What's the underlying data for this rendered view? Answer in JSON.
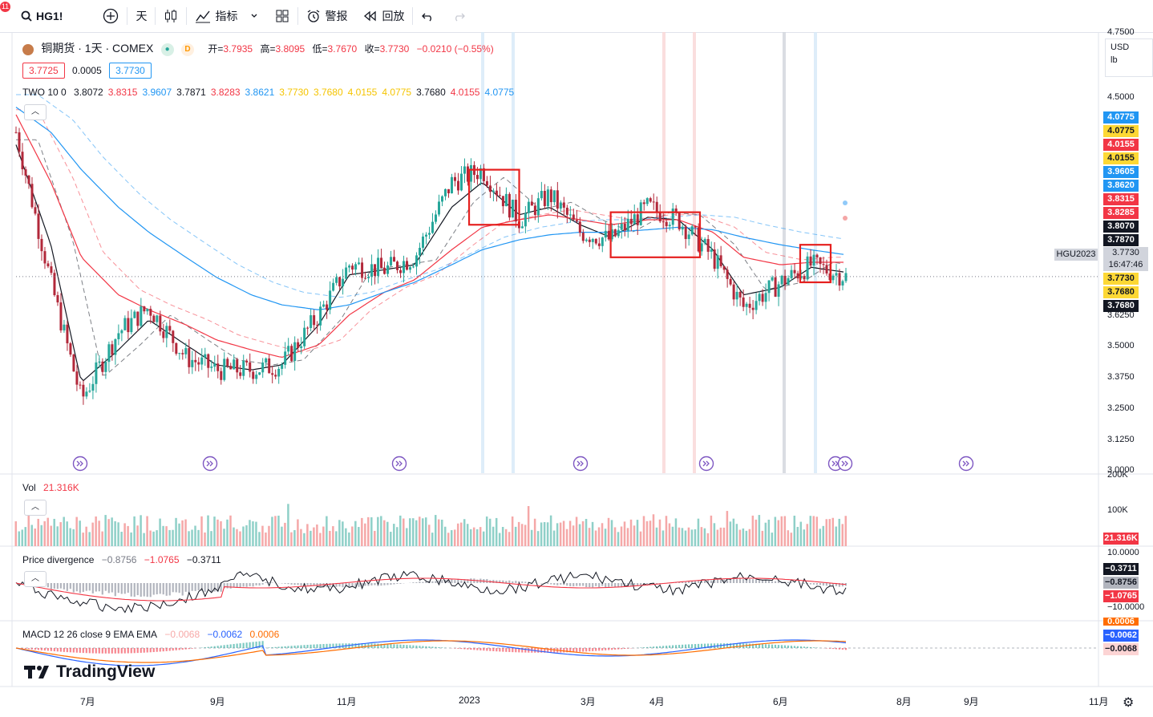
{
  "toolbar": {
    "badge": "11",
    "symbol": "HG1!",
    "interval": "天",
    "indicators": "指标",
    "alert": "警报",
    "replay": "回放"
  },
  "header": {
    "title": "铜期货 · 1天 · COMEX",
    "open_label": "开=",
    "open": "3.7935",
    "high_label": "高=",
    "high": "3.8095",
    "low_label": "低=",
    "low": "3.7670",
    "close_label": "收=",
    "close": "3.7730",
    "change": "−0.0210 (−0.55%)",
    "bid": "3.7725",
    "spread": "0.0005",
    "ask": "3.7730",
    "status_letter": "D"
  },
  "two_legend": {
    "name": "TWO 10 0",
    "values": [
      "3.8072",
      "3.8315",
      "3.9607",
      "3.7871",
      "3.8283",
      "3.8621",
      "3.7730",
      "3.7680",
      "4.0155",
      "4.0775",
      "3.7680",
      "4.0155",
      "4.0775"
    ],
    "colors": [
      "#131722",
      "#f23645",
      "#2196f3",
      "#131722",
      "#f23645",
      "#2196f3",
      "#f5c400",
      "#f5c400",
      "#f5c400",
      "#f5c400",
      "#131722",
      "#f23645",
      "#2196f3"
    ]
  },
  "currency": {
    "unit": "USD",
    "measure": "lb"
  },
  "price_axis": {
    "ticks": [
      "4.7500",
      "4.5000",
      "3.6250",
      "3.5000",
      "3.3750",
      "3.2500",
      "3.1250",
      "3.0000"
    ],
    "labels": [
      {
        "text": "4.0775",
        "bg": "#2196f3",
        "fg": "#ffffff"
      },
      {
        "text": "4.0775",
        "bg": "#fdd835",
        "fg": "#131722"
      },
      {
        "text": "4.0155",
        "bg": "#f23645",
        "fg": "#ffffff"
      },
      {
        "text": "4.0155",
        "bg": "#fdd835",
        "fg": "#131722"
      },
      {
        "text": "3.9605",
        "bg": "#2196f3",
        "fg": "#ffffff"
      },
      {
        "text": "3.8620",
        "bg": "#2196f3",
        "fg": "#ffffff"
      },
      {
        "text": "3.8315",
        "bg": "#f23645",
        "fg": "#ffffff"
      },
      {
        "text": "3.8285",
        "bg": "#f23645",
        "fg": "#ffffff"
      },
      {
        "text": "3.8070",
        "bg": "#131722",
        "fg": "#ffffff"
      },
      {
        "text": "3.7870",
        "bg": "#131722",
        "fg": "#ffffff"
      },
      {
        "text": "3.7730",
        "bg": "#fdd835",
        "fg": "#131722"
      },
      {
        "text": "3.7680",
        "bg": "#fdd835",
        "fg": "#131722"
      },
      {
        "text": "3.7680",
        "bg": "#131722",
        "fg": "#ffffff"
      }
    ],
    "current_label": "3.7730",
    "countdown": "16:47:46",
    "contract": "HGU2023"
  },
  "volume": {
    "name": "Vol",
    "value": "21.316K",
    "ticks": [
      "200K",
      "100K"
    ],
    "label": "21.316K"
  },
  "divergence": {
    "name": "Price divergence",
    "v1": "−0.8756",
    "v2": "−1.0765",
    "v3": "−0.3711",
    "ticks": [
      "10.0000",
      "−10.0000"
    ],
    "labels": [
      "−0.3711",
      "−0.8756",
      "−1.0765"
    ]
  },
  "macd": {
    "name": "MACD 12 26 close 9 EMA EMA",
    "v1": "−0.0068",
    "v2": "−0.0062",
    "v3": "0.0006",
    "labels": [
      "0.0006",
      "−0.0062",
      "−0.0068"
    ]
  },
  "x_axis": [
    "7月",
    "9月",
    "11月",
    "2023",
    "3月",
    "4月",
    "6月",
    "8月",
    "9月",
    "11月"
  ],
  "branding": "TradingView",
  "colors": {
    "up": "#26a69a",
    "down": "#b2283a",
    "ma_red": "#f23645",
    "ma_blue": "#2196f3",
    "ma_black": "#131722",
    "box": "#e5201f"
  },
  "chart_data": {
    "type": "candlestick",
    "title": "铜期货 · 1天 · COMEX",
    "x": [
      "2022-06-15",
      "2022-07-01",
      "2022-07-15",
      "2022-08-01",
      "2022-08-15",
      "2022-09-01",
      "2022-09-15",
      "2022-10-01",
      "2022-10-15",
      "2022-11-01",
      "2022-11-15",
      "2022-12-01",
      "2022-12-15",
      "2023-01-01",
      "2023-01-15",
      "2023-02-01",
      "2023-02-15",
      "2023-03-01",
      "2023-03-15",
      "2023-04-01",
      "2023-04-15",
      "2023-05-01",
      "2023-05-15",
      "2023-06-01",
      "2023-06-15",
      "2023-07-01"
    ],
    "close": [
      4.35,
      3.75,
      3.28,
      3.55,
      3.65,
      3.45,
      3.4,
      3.4,
      3.42,
      3.62,
      3.82,
      3.8,
      3.85,
      4.15,
      4.2,
      4.0,
      4.1,
      3.95,
      3.92,
      4.05,
      4.0,
      3.85,
      3.65,
      3.75,
      3.82,
      3.773
    ],
    "ylim": [
      3.0,
      4.75
    ],
    "ylabel": "USD / lb",
    "series": [
      {
        "name": "TWO 10 0 fast",
        "values": [
          4.3,
          3.9,
          3.35,
          3.48,
          3.6,
          3.5,
          3.42,
          3.4,
          3.42,
          3.58,
          3.78,
          3.8,
          3.82,
          4.05,
          4.15,
          4.02,
          4.05,
          3.98,
          3.93,
          4.01,
          4.0,
          3.88,
          3.7,
          3.73,
          3.81,
          3.79
        ]
      },
      {
        "name": "TWO 10 0 mid",
        "values": [
          4.42,
          4.15,
          3.85,
          3.7,
          3.64,
          3.58,
          3.52,
          3.48,
          3.45,
          3.5,
          3.62,
          3.71,
          3.76,
          3.88,
          3.97,
          4.0,
          4.02,
          4.0,
          3.98,
          4.0,
          4.0,
          3.95,
          3.85,
          3.82,
          3.83,
          3.83
        ]
      },
      {
        "name": "TWO 10 0 slow",
        "values": [
          4.45,
          4.35,
          4.2,
          4.05,
          3.95,
          3.85,
          3.77,
          3.7,
          3.66,
          3.64,
          3.66,
          3.71,
          3.75,
          3.82,
          3.88,
          3.92,
          3.94,
          3.95,
          3.95,
          3.96,
          3.97,
          3.96,
          3.93,
          3.9,
          3.88,
          3.86
        ]
      }
    ],
    "boxes": [
      {
        "from": "2023-01-09",
        "to": "2023-02-01",
        "high": 4.2,
        "low": 3.98
      },
      {
        "from": "2023-03-15",
        "to": "2023-04-25",
        "high": 4.03,
        "low": 3.85
      },
      {
        "from": "2023-06-10",
        "to": "2023-06-24",
        "high": 3.9,
        "low": 3.75
      }
    ]
  }
}
